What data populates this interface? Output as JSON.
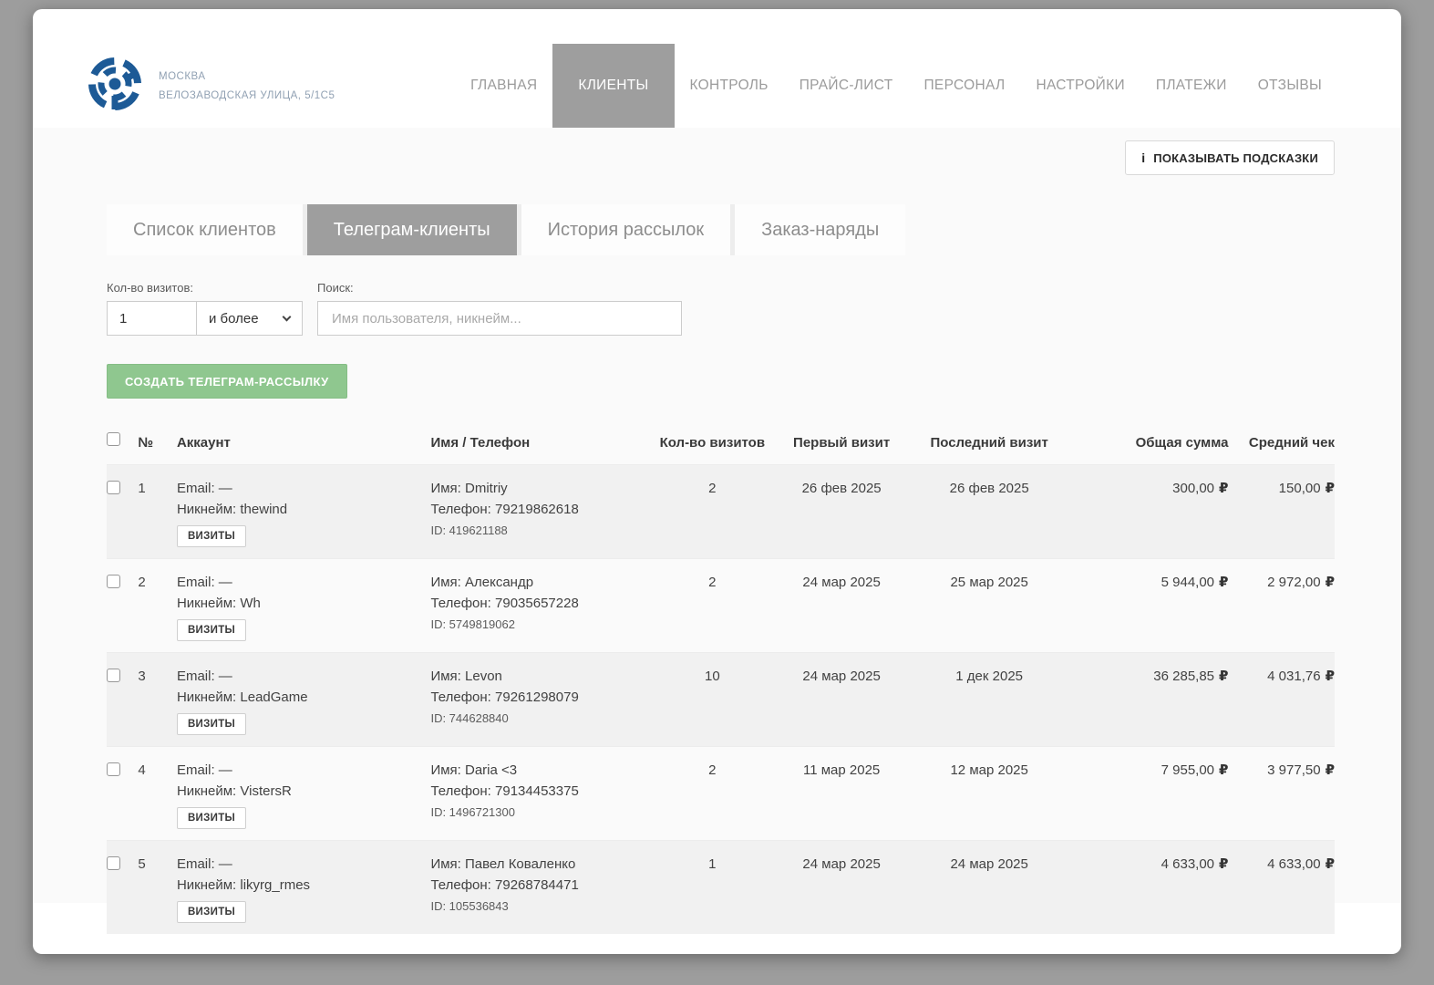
{
  "header": {
    "city": "МОСКВА",
    "address": "ВЕЛОЗАВОДСКАЯ УЛИЦА, 5/1С5",
    "nav": [
      {
        "label": "ГЛАВНАЯ",
        "active": false
      },
      {
        "label": "КЛИЕНТЫ",
        "active": true
      },
      {
        "label": "КОНТРОЛЬ",
        "active": false
      },
      {
        "label": "ПРАЙС-ЛИСТ",
        "active": false
      },
      {
        "label": "ПЕРСОНАЛ",
        "active": false
      },
      {
        "label": "НАСТРОЙКИ",
        "active": false
      },
      {
        "label": "ПЛАТЕЖИ",
        "active": false
      },
      {
        "label": "ОТЗЫВЫ",
        "active": false
      }
    ]
  },
  "hints": {
    "icon": "i",
    "label": "ПОКАЗЫВАТЬ ПОДСКАЗКИ"
  },
  "tabs": [
    {
      "label": "Список клиентов",
      "active": false
    },
    {
      "label": "Телеграм-клиенты",
      "active": true
    },
    {
      "label": "История рассылок",
      "active": false
    },
    {
      "label": "Заказ-наряды",
      "active": false
    }
  ],
  "filters": {
    "visits_label": "Кол-во визитов:",
    "visits_value": "1",
    "visits_mode": "и более",
    "search_label": "Поиск:",
    "search_placeholder": "Имя пользователя, никнейм..."
  },
  "create_button": "СОЗДАТЬ ТЕЛЕГРАМ-РАССЫЛКУ",
  "table": {
    "columns": [
      "№",
      "Аккаунт",
      "Имя / Телефон",
      "Кол-во визитов",
      "Первый визит",
      "Последний визит",
      "Общая сумма",
      "Средний чек"
    ],
    "visits_button": "ВИЗИТЫ",
    "currency": "₽",
    "rows": [
      {
        "num": "1",
        "email": "Email: —",
        "nickname": "Никнейм: thewind",
        "name": "Имя: Dmitriy",
        "phone": "Телефон: 79219862618",
        "id": "ID: 419621188",
        "visits": "2",
        "first_visit": "26 фев 2025",
        "last_visit": "26 фев 2025",
        "total": "300,00",
        "avg": "150,00"
      },
      {
        "num": "2",
        "email": "Email: —",
        "nickname": "Никнейм: Wh",
        "name": "Имя: Александр",
        "phone": "Телефон: 79035657228",
        "id": "ID: 5749819062",
        "visits": "2",
        "first_visit": "24 мар 2025",
        "last_visit": "25 мар 2025",
        "total": "5 944,00",
        "avg": "2 972,00"
      },
      {
        "num": "3",
        "email": "Email: —",
        "nickname": "Никнейм: LeadGame",
        "name": "Имя: Levon",
        "phone": "Телефон: 79261298079",
        "id": "ID: 744628840",
        "visits": "10",
        "first_visit": "24 мар 2025",
        "last_visit": "1 дек 2025",
        "total": "36 285,85",
        "avg": "4 031,76"
      },
      {
        "num": "4",
        "email": "Email: —",
        "nickname": "Никнейм: VistersR",
        "name": "Имя: Daria <3",
        "phone": "Телефон: 79134453375",
        "id": "ID: 1496721300",
        "visits": "2",
        "first_visit": "11 мар 2025",
        "last_visit": "12 мар 2025",
        "total": "7 955,00",
        "avg": "3 977,50"
      },
      {
        "num": "5",
        "email": "Email: —",
        "nickname": "Никнейм: likyrg_rmes",
        "name": "Имя: Павел Коваленко",
        "phone": "Телефон: 79268784471",
        "id": "ID: 105536843",
        "visits": "1",
        "first_visit": "24 мар 2025",
        "last_visit": "24 мар 2025",
        "total": "4 633,00",
        "avg": "4 633,00"
      }
    ]
  }
}
